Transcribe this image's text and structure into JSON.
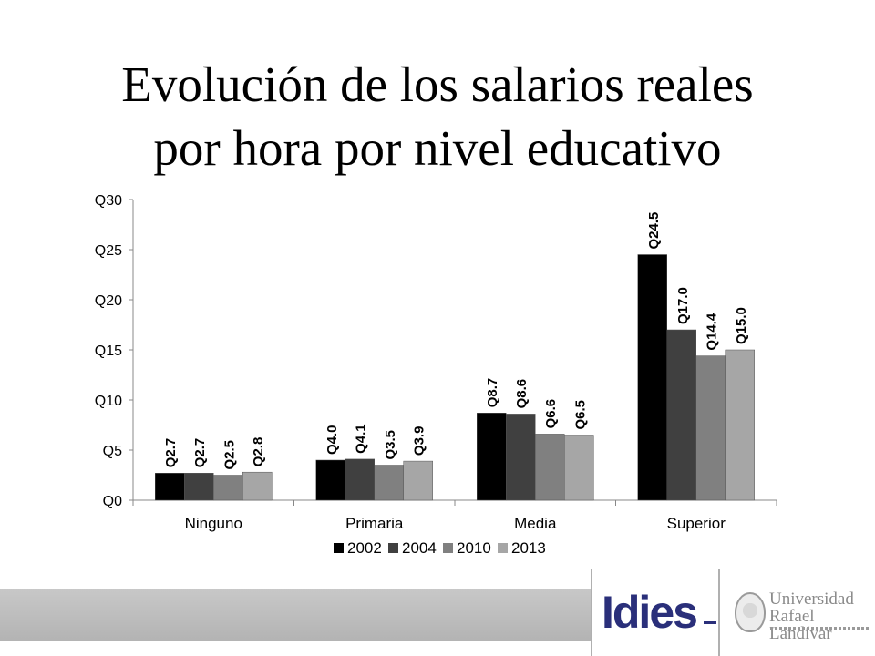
{
  "slide": {
    "title_line1": "Evolución de los salarios reales",
    "title_line2": "por hora por nivel educativo"
  },
  "footer": {
    "logo_left": "Idies",
    "logo_right_line1": "Universidad",
    "logo_right_line2": "Rafael Landívar"
  },
  "chart_data": {
    "type": "bar",
    "categories": [
      "Ninguno",
      "Primaria",
      "Media",
      "Superior"
    ],
    "series": [
      {
        "name": "2002",
        "color": "#000000",
        "values": [
          2.7,
          4.0,
          8.7,
          24.5
        ],
        "labels": [
          "Q2.7",
          "Q4.0",
          "Q8.7",
          "Q24.5"
        ]
      },
      {
        "name": "2004",
        "color": "#404040",
        "values": [
          2.7,
          4.1,
          8.6,
          17.0
        ],
        "labels": [
          "Q2.7",
          "Q4.1",
          "Q8.6",
          "Q17.0"
        ]
      },
      {
        "name": "2010",
        "color": "#808080",
        "values": [
          2.5,
          3.5,
          6.6,
          14.4
        ],
        "labels": [
          "Q2.5",
          "Q3.5",
          "Q6.6",
          "Q14.4"
        ]
      },
      {
        "name": "2013",
        "color": "#a6a6a6",
        "values": [
          2.8,
          3.9,
          6.5,
          15.0
        ],
        "labels": [
          "Q2.8",
          "Q3.9",
          "Q6.5",
          "Q15.0"
        ]
      }
    ],
    "ylim": [
      0,
      30
    ],
    "yticks": [
      0,
      5,
      10,
      15,
      20,
      25,
      30
    ],
    "ytick_labels": [
      "Q0",
      "Q5",
      "Q10",
      "Q15",
      "Q20",
      "Q25",
      "Q30"
    ],
    "xlabel": "",
    "ylabel": "",
    "grid": false,
    "legend_position": "bottom"
  }
}
